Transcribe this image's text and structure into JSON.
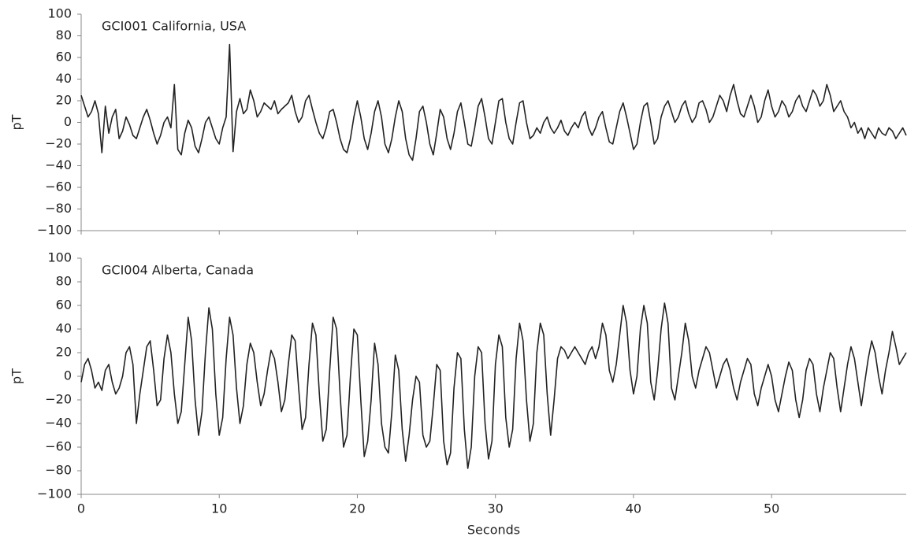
{
  "chart_data": [
    {
      "type": "line",
      "annotation": "GCI001 California, USA",
      "ylabel": "pT",
      "color": "#222222",
      "xlim": [
        0,
        59.75
      ],
      "xticks": [
        0,
        10,
        20,
        30,
        40,
        50
      ],
      "ylim": [
        -100,
        100
      ],
      "yticks": [
        {
          "value": -100,
          "label": "−100"
        },
        {
          "value": -80,
          "label": "−80"
        },
        {
          "value": -60,
          "label": "−60"
        },
        {
          "value": -40,
          "label": "−40"
        },
        {
          "value": -20,
          "label": "−20"
        },
        0,
        20,
        40,
        60,
        80,
        100
      ],
      "x": [
        0,
        0.25,
        0.5,
        0.75,
        1,
        1.25,
        1.5,
        1.75,
        2,
        2.25,
        2.5,
        2.75,
        3,
        3.25,
        3.5,
        3.75,
        4,
        4.25,
        4.5,
        4.75,
        5,
        5.25,
        5.5,
        5.75,
        6,
        6.25,
        6.5,
        6.75,
        7,
        7.25,
        7.5,
        7.75,
        8,
        8.25,
        8.5,
        8.75,
        9,
        9.25,
        9.5,
        9.75,
        10,
        10.25,
        10.5,
        10.75,
        11,
        11.25,
        11.5,
        11.75,
        12,
        12.25,
        12.5,
        12.75,
        13,
        13.25,
        13.5,
        13.75,
        14,
        14.25,
        14.5,
        14.75,
        15,
        15.25,
        15.5,
        15.75,
        16,
        16.25,
        16.5,
        16.75,
        17,
        17.25,
        17.5,
        17.75,
        18,
        18.25,
        18.5,
        18.75,
        19,
        19.25,
        19.5,
        19.75,
        20,
        20.25,
        20.5,
        20.75,
        21,
        21.25,
        21.5,
        21.75,
        22,
        22.25,
        22.5,
        22.75,
        23,
        23.25,
        23.5,
        23.75,
        24,
        24.25,
        24.5,
        24.75,
        25,
        25.25,
        25.5,
        25.75,
        26,
        26.25,
        26.5,
        26.75,
        27,
        27.25,
        27.5,
        27.75,
        28,
        28.25,
        28.5,
        28.75,
        29,
        29.25,
        29.5,
        29.75,
        30,
        30.25,
        30.5,
        30.75,
        31,
        31.25,
        31.5,
        31.75,
        32,
        32.25,
        32.5,
        32.75,
        33,
        33.25,
        33.5,
        33.75,
        34,
        34.25,
        34.5,
        34.75,
        35,
        35.25,
        35.5,
        35.75,
        36,
        36.25,
        36.5,
        36.75,
        37,
        37.25,
        37.5,
        37.75,
        38,
        38.25,
        38.5,
        38.75,
        39,
        39.25,
        39.5,
        39.75,
        40,
        40.25,
        40.5,
        40.75,
        41,
        41.25,
        41.5,
        41.75,
        42,
        42.25,
        42.5,
        42.75,
        43,
        43.25,
        43.5,
        43.75,
        44,
        44.25,
        44.5,
        44.75,
        45,
        45.25,
        45.5,
        45.75,
        46,
        46.25,
        46.5,
        46.75,
        47,
        47.25,
        47.5,
        47.75,
        48,
        48.25,
        48.5,
        48.75,
        49,
        49.25,
        49.5,
        49.75,
        50,
        50.25,
        50.5,
        50.75,
        51,
        51.25,
        51.5,
        51.75,
        52,
        52.25,
        52.5,
        52.75,
        53,
        53.25,
        53.5,
        53.75,
        54,
        54.25,
        54.5,
        54.75,
        55,
        55.25,
        55.5,
        55.75,
        56,
        56.25,
        56.5,
        56.75,
        57,
        57.25,
        57.5,
        57.75,
        58,
        58.25,
        58.5,
        58.75,
        59,
        59.25,
        59.5,
        59.75
      ],
      "values": [
        25,
        15,
        5,
        10,
        20,
        8,
        -28,
        15,
        -10,
        5,
        12,
        -15,
        -8,
        5,
        -2,
        -12,
        -15,
        -5,
        5,
        12,
        2,
        -10,
        -20,
        -12,
        0,
        5,
        -5,
        35,
        -25,
        -30,
        -10,
        2,
        -5,
        -22,
        -28,
        -15,
        0,
        5,
        -5,
        -15,
        -20,
        -5,
        5,
        72,
        -27,
        10,
        22,
        8,
        12,
        30,
        20,
        5,
        10,
        18,
        15,
        12,
        20,
        8,
        12,
        15,
        18,
        25,
        10,
        0,
        5,
        20,
        25,
        12,
        0,
        -10,
        -15,
        -5,
        10,
        12,
        0,
        -15,
        -25,
        -28,
        -15,
        5,
        20,
        5,
        -15,
        -25,
        -10,
        10,
        20,
        5,
        -20,
        -28,
        -15,
        5,
        20,
        10,
        -15,
        -30,
        -35,
        -15,
        10,
        15,
        0,
        -20,
        -30,
        -10,
        12,
        5,
        -15,
        -25,
        -10,
        10,
        18,
        0,
        -20,
        -22,
        -5,
        15,
        22,
        5,
        -15,
        -20,
        0,
        20,
        22,
        0,
        -15,
        -20,
        0,
        18,
        20,
        0,
        -15,
        -12,
        -5,
        -10,
        0,
        5,
        -5,
        -10,
        -5,
        2,
        -8,
        -12,
        -5,
        0,
        -5,
        5,
        10,
        -5,
        -12,
        -5,
        5,
        10,
        -5,
        -18,
        -20,
        -5,
        10,
        18,
        5,
        -10,
        -25,
        -20,
        0,
        15,
        18,
        0,
        -20,
        -15,
        5,
        15,
        20,
        10,
        0,
        5,
        15,
        20,
        8,
        0,
        5,
        18,
        20,
        12,
        0,
        5,
        15,
        25,
        20,
        10,
        25,
        35,
        20,
        8,
        5,
        15,
        25,
        15,
        0,
        5,
        20,
        30,
        15,
        5,
        10,
        20,
        15,
        5,
        10,
        20,
        25,
        15,
        10,
        20,
        30,
        25,
        15,
        20,
        35,
        25,
        10,
        15,
        20,
        10,
        5,
        -5,
        0,
        -10,
        -5,
        -15,
        -5,
        -10,
        -15,
        -5,
        -10,
        -12,
        -5,
        -8,
        -15,
        -10,
        -5,
        -12
      ]
    },
    {
      "type": "line",
      "annotation": "GCI004 Alberta, Canada",
      "ylabel": "pT",
      "xlabel": "Seconds",
      "color": "#222222",
      "xlim": [
        0,
        59.75
      ],
      "xticks": [
        0,
        10,
        20,
        30,
        40,
        50
      ],
      "ylim": [
        -100,
        100
      ],
      "yticks": [
        {
          "value": -100,
          "label": "−100"
        },
        {
          "value": -80,
          "label": "−80"
        },
        {
          "value": -60,
          "label": "−60"
        },
        {
          "value": -40,
          "label": "−40"
        },
        {
          "value": -20,
          "label": "−20"
        },
        0,
        20,
        40,
        60,
        80,
        100
      ],
      "x": [
        0,
        0.25,
        0.5,
        0.75,
        1,
        1.25,
        1.5,
        1.75,
        2,
        2.25,
        2.5,
        2.75,
        3,
        3.25,
        3.5,
        3.75,
        4,
        4.25,
        4.5,
        4.75,
        5,
        5.25,
        5.5,
        5.75,
        6,
        6.25,
        6.5,
        6.75,
        7,
        7.25,
        7.5,
        7.75,
        8,
        8.25,
        8.5,
        8.75,
        9,
        9.25,
        9.5,
        9.75,
        10,
        10.25,
        10.5,
        10.75,
        11,
        11.25,
        11.5,
        11.75,
        12,
        12.25,
        12.5,
        12.75,
        13,
        13.25,
        13.5,
        13.75,
        14,
        14.25,
        14.5,
        14.75,
        15,
        15.25,
        15.5,
        15.75,
        16,
        16.25,
        16.5,
        16.75,
        17,
        17.25,
        17.5,
        17.75,
        18,
        18.25,
        18.5,
        18.75,
        19,
        19.25,
        19.5,
        19.75,
        20,
        20.25,
        20.5,
        20.75,
        21,
        21.25,
        21.5,
        21.75,
        22,
        22.25,
        22.5,
        22.75,
        23,
        23.25,
        23.5,
        23.75,
        24,
        24.25,
        24.5,
        24.75,
        25,
        25.25,
        25.5,
        25.75,
        26,
        26.25,
        26.5,
        26.75,
        27,
        27.25,
        27.5,
        27.75,
        28,
        28.25,
        28.5,
        28.75,
        29,
        29.25,
        29.5,
        29.75,
        30,
        30.25,
        30.5,
        30.75,
        31,
        31.25,
        31.5,
        31.75,
        32,
        32.25,
        32.5,
        32.75,
        33,
        33.25,
        33.5,
        33.75,
        34,
        34.25,
        34.5,
        34.75,
        35,
        35.25,
        35.5,
        35.75,
        36,
        36.25,
        36.5,
        36.75,
        37,
        37.25,
        37.5,
        37.75,
        38,
        38.25,
        38.5,
        38.75,
        39,
        39.25,
        39.5,
        39.75,
        40,
        40.25,
        40.5,
        40.75,
        41,
        41.25,
        41.5,
        41.75,
        42,
        42.25,
        42.5,
        42.75,
        43,
        43.25,
        43.5,
        43.75,
        44,
        44.25,
        44.5,
        44.75,
        45,
        45.25,
        45.5,
        45.75,
        46,
        46.25,
        46.5,
        46.75,
        47,
        47.25,
        47.5,
        47.75,
        48,
        48.25,
        48.5,
        48.75,
        49,
        49.25,
        49.5,
        49.75,
        50,
        50.25,
        50.5,
        50.75,
        51,
        51.25,
        51.5,
        51.75,
        52,
        52.25,
        52.5,
        52.75,
        53,
        53.25,
        53.5,
        53.75,
        54,
        54.25,
        54.5,
        54.75,
        55,
        55.25,
        55.5,
        55.75,
        56,
        56.25,
        56.5,
        56.75,
        57,
        57.25,
        57.5,
        57.75,
        58,
        58.25,
        58.5,
        58.75,
        59,
        59.25,
        59.5,
        59.75
      ],
      "values": [
        -5,
        10,
        15,
        5,
        -10,
        -5,
        -12,
        5,
        10,
        -5,
        -15,
        -10,
        0,
        20,
        25,
        10,
        -40,
        -15,
        5,
        25,
        30,
        5,
        -25,
        -20,
        15,
        35,
        20,
        -15,
        -40,
        -30,
        10,
        50,
        30,
        -20,
        -50,
        -30,
        20,
        58,
        40,
        -15,
        -50,
        -35,
        15,
        50,
        35,
        -10,
        -40,
        -25,
        10,
        28,
        20,
        -5,
        -25,
        -15,
        5,
        22,
        15,
        -5,
        -30,
        -20,
        10,
        35,
        30,
        -10,
        -45,
        -35,
        10,
        45,
        35,
        -15,
        -55,
        -45,
        5,
        50,
        40,
        -15,
        -60,
        -50,
        0,
        40,
        35,
        -20,
        -68,
        -55,
        -20,
        28,
        10,
        -40,
        -60,
        -65,
        -30,
        18,
        5,
        -45,
        -72,
        -50,
        -20,
        0,
        -5,
        -50,
        -60,
        -55,
        -25,
        10,
        5,
        -55,
        -75,
        -65,
        -10,
        20,
        15,
        -45,
        -78,
        -60,
        0,
        25,
        20,
        -40,
        -70,
        -55,
        10,
        35,
        25,
        -35,
        -60,
        -45,
        15,
        45,
        30,
        -20,
        -55,
        -40,
        20,
        45,
        35,
        -15,
        -50,
        -20,
        15,
        25,
        22,
        15,
        20,
        25,
        20,
        15,
        10,
        20,
        25,
        15,
        25,
        45,
        35,
        5,
        -5,
        10,
        35,
        60,
        45,
        5,
        -15,
        0,
        40,
        60,
        45,
        -5,
        -20,
        5,
        40,
        62,
        45,
        -10,
        -20,
        0,
        20,
        45,
        30,
        0,
        -10,
        5,
        15,
        25,
        20,
        5,
        -10,
        0,
        10,
        15,
        5,
        -10,
        -20,
        -5,
        5,
        15,
        10,
        -15,
        -25,
        -10,
        0,
        10,
        0,
        -20,
        -30,
        -15,
        0,
        12,
        5,
        -20,
        -35,
        -20,
        5,
        15,
        10,
        -15,
        -30,
        -10,
        5,
        20,
        15,
        -10,
        -30,
        -10,
        10,
        25,
        15,
        -5,
        -25,
        -5,
        15,
        30,
        20,
        0,
        -15,
        5,
        20,
        38,
        25,
        10,
        15,
        20
      ]
    }
  ]
}
